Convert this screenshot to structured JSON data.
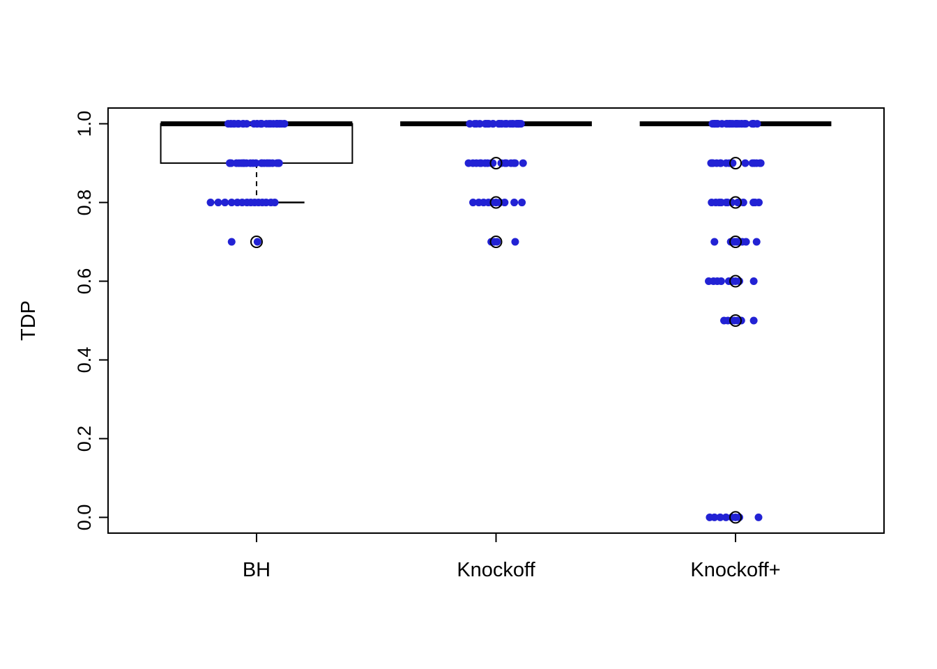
{
  "figure": {
    "background": "#ffffff"
  },
  "chart_data": {
    "type": "boxplot",
    "title": "",
    "xlabel": "",
    "ylabel": "TDP",
    "ylim": [
      0,
      1
    ],
    "ytick_values": [
      0.0,
      0.2,
      0.4,
      0.6,
      0.8,
      1.0
    ],
    "ytick_labels": [
      "0.0",
      "0.2",
      "0.4",
      "0.6",
      "0.8",
      "1.0"
    ],
    "categories": [
      "BH",
      "Knockoff",
      "Knockoff+"
    ],
    "grid": false,
    "point_color": "#2222d4",
    "box_color": "#000000",
    "boxes": [
      {
        "category": "BH",
        "q1": 0.9,
        "median": 1.0,
        "q3": 1.0,
        "whisker_low": 0.8,
        "whisker_high": 1.0,
        "outliers": [
          0.7
        ]
      },
      {
        "category": "Knockoff",
        "q1": 1.0,
        "median": 1.0,
        "q3": 1.0,
        "whisker_low": 1.0,
        "whisker_high": 1.0,
        "outliers": [
          0.9,
          0.8,
          0.7
        ]
      },
      {
        "category": "Knockoff+",
        "q1": 1.0,
        "median": 1.0,
        "q3": 1.0,
        "whisker_low": 1.0,
        "whisker_high": 1.0,
        "outliers": [
          0.9,
          0.8,
          0.7,
          0.6,
          0.5,
          0.0
        ]
      }
    ],
    "points": [
      {
        "category": "BH",
        "levels": [
          {
            "value": 1.0,
            "count": 32,
            "spread": 0.3
          },
          {
            "value": 0.9,
            "count": 24,
            "spread": 0.29
          },
          {
            "value": 0.8,
            "count": 14,
            "offsets": [
              -0.48,
              -0.4,
              -0.33,
              -0.26,
              -0.2,
              -0.15,
              -0.1,
              -0.06,
              -0.02,
              0.02,
              0.06,
              0.1,
              0.15,
              0.19
            ]
          },
          {
            "value": 0.7,
            "count": 2,
            "offsets": [
              -0.26,
              0.01
            ]
          }
        ]
      },
      {
        "category": "Knockoff",
        "levels": [
          {
            "value": 1.0,
            "count": 30,
            "spread": 0.29
          },
          {
            "value": 0.9,
            "count": 16,
            "spread": 0.29
          },
          {
            "value": 0.8,
            "count": 10,
            "offsets": [
              -0.24,
              -0.18,
              -0.13,
              -0.08,
              -0.04,
              0.0,
              0.04,
              0.09,
              0.19,
              0.27
            ]
          },
          {
            "value": 0.7,
            "count": 4,
            "offsets": [
              -0.05,
              -0.02,
              0.01,
              0.2
            ]
          }
        ]
      },
      {
        "category": "Knockoff+",
        "levels": [
          {
            "value": 1.0,
            "count": 30,
            "spread": 0.28
          },
          {
            "value": 0.9,
            "count": 16,
            "spread": 0.28
          },
          {
            "value": 0.8,
            "count": 14,
            "spread": 0.27
          },
          {
            "value": 0.7,
            "count": 9,
            "offsets": [
              -0.22,
              -0.05,
              -0.03,
              -0.01,
              0.01,
              0.03,
              0.07,
              0.11,
              0.22
            ]
          },
          {
            "value": 0.6,
            "count": 9,
            "offsets": [
              -0.28,
              -0.23,
              -0.19,
              -0.15,
              -0.07,
              -0.03,
              0.0,
              0.04,
              0.19
            ]
          },
          {
            "value": 0.5,
            "count": 7,
            "offsets": [
              -0.12,
              -0.08,
              -0.04,
              -0.01,
              0.02,
              0.06,
              0.19
            ]
          },
          {
            "value": 0.0,
            "count": 8,
            "offsets": [
              -0.27,
              -0.22,
              -0.16,
              -0.1,
              -0.04,
              0.0,
              0.04,
              0.24
            ]
          }
        ]
      }
    ]
  }
}
